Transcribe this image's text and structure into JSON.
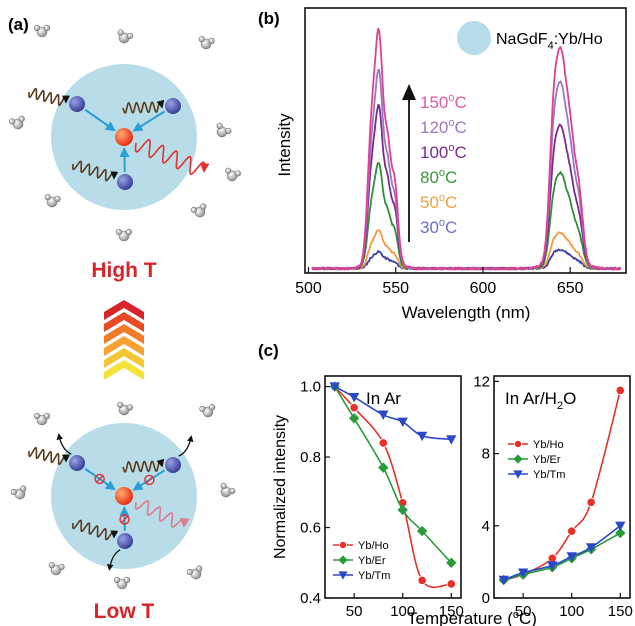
{
  "panel_labels": {
    "a": "(a)",
    "b": "(b)",
    "c": "(c)"
  },
  "schematic": {
    "high_label": "High T",
    "low_label": "Low T",
    "colors": {
      "sphere": "#b8dde9",
      "center_ion": "#e8421a",
      "sensitizer": "#5560a8",
      "arrow": "#2a9fd6",
      "label_red": "#d8242a"
    }
  },
  "chart_data": [
    {
      "type": "line",
      "ylabel": "Intensity",
      "xlabel": "Wavelength (nm)",
      "xlim": [
        498,
        682
      ],
      "xticks": [
        500,
        550,
        600,
        650
      ],
      "legend_title": "NaGdF",
      "legend_sub": "4",
      "legend_suffix": ":Yb/Ho",
      "legend_circle_color": "#b5dce8",
      "temperature_labels": [
        {
          "text": "150",
          "unit": "o",
          "suffix": "C",
          "color": "#e05aa8"
        },
        {
          "text": "120",
          "unit": "o",
          "suffix": "C",
          "color": "#9a78c0"
        },
        {
          "text": "100",
          "unit": "o",
          "suffix": "C",
          "color": "#7a2a90"
        },
        {
          "text": "80",
          "unit": "o",
          "suffix": "C",
          "color": "#3a9a3a"
        },
        {
          "text": "50",
          "unit": "o",
          "suffix": "C",
          "color": "#f0a040"
        },
        {
          "text": "30",
          "unit": "o",
          "suffix": "C",
          "color": "#6a70c8"
        }
      ],
      "series": [
        {
          "temp": 30,
          "color": "#3a42a8",
          "peak_a": 0.07,
          "peak_b": 0.08
        },
        {
          "temp": 50,
          "color": "#f09a40",
          "peak_a": 0.16,
          "peak_b": 0.15
        },
        {
          "temp": 80,
          "color": "#2f8f3a",
          "peak_a": 0.44,
          "peak_b": 0.4
        },
        {
          "temp": 100,
          "color": "#7a2a90",
          "peak_a": 0.68,
          "peak_b": 0.6
        },
        {
          "temp": 120,
          "color": "#9a78c8",
          "peak_a": 0.83,
          "peak_b": 0.78
        },
        {
          "temp": 150,
          "color": "#e0408f",
          "peak_a": 1.0,
          "peak_b": 0.92
        }
      ]
    },
    {
      "type": "line",
      "title": "In Ar",
      "ylabel": "Normalized intensity",
      "xlim": [
        20,
        160
      ],
      "ylim": [
        0.4,
        1.03
      ],
      "xticks": [
        50,
        100,
        150
      ],
      "yticks": [
        "0.4",
        "0.6",
        "0.8",
        "1.0"
      ],
      "x": [
        30,
        50,
        80,
        100,
        120,
        150
      ],
      "series": [
        {
          "name": "Yb/Ho",
          "color": "#e8302a",
          "marker": "circle",
          "values": [
            1.0,
            0.94,
            0.84,
            0.67,
            0.45,
            0.44
          ]
        },
        {
          "name": "Yb/Er",
          "color": "#2a9a3a",
          "marker": "diamond",
          "values": [
            1.0,
            0.91,
            0.77,
            0.65,
            0.59,
            0.5
          ]
        },
        {
          "name": "Yb/Tm",
          "color": "#2a48c8",
          "marker": "triangle",
          "values": [
            1.0,
            0.97,
            0.92,
            0.9,
            0.86,
            0.85
          ]
        }
      ]
    },
    {
      "type": "line",
      "title_pre": "In Ar/H",
      "title_sub": "2",
      "title_post": "O",
      "xlabel_pre": "Temperature (",
      "xlabel_sup": "o",
      "xlabel_post": "C)",
      "xlim": [
        20,
        160
      ],
      "ylim": [
        0,
        12.3
      ],
      "xticks": [
        50,
        100,
        150
      ],
      "yticks": [
        "0",
        "4",
        "8",
        "12"
      ],
      "x": [
        30,
        50,
        80,
        100,
        120,
        150
      ],
      "series": [
        {
          "name": "Yb/Ho",
          "color": "#e8302a",
          "marker": "circle",
          "values": [
            1.0,
            1.3,
            2.2,
            3.7,
            5.3,
            11.5
          ]
        },
        {
          "name": "Yb/Er",
          "color": "#2a9a3a",
          "marker": "diamond",
          "values": [
            1.0,
            1.3,
            1.7,
            2.2,
            2.7,
            3.6
          ]
        },
        {
          "name": "Yb/Tm",
          "color": "#2a48c8",
          "marker": "triangle",
          "values": [
            1.0,
            1.4,
            1.8,
            2.3,
            2.8,
            4.0
          ]
        }
      ]
    }
  ]
}
